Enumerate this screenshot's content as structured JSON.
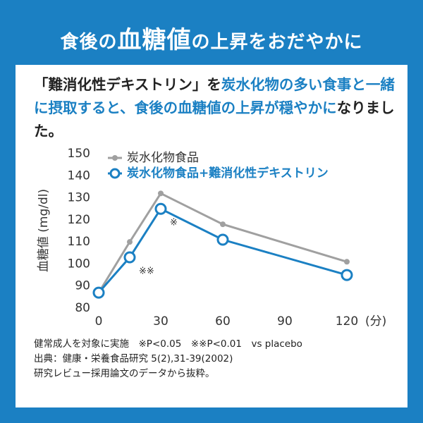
{
  "title": [
    "食後の",
    "血糖値",
    "の上昇をおだやかに"
  ],
  "lead": [
    "「難消化性デキストリン」を",
    "炭水化物の多い食事と一緒に摂取すると、食後の血糖値の上昇が穏やかに",
    "なりました。"
  ],
  "chart_data": {
    "type": "line",
    "ylabel": "血糖値 (mg/dl)",
    "xlabel": "(分)",
    "x": [
      0,
      15,
      30,
      60,
      120
    ],
    "series": [
      {
        "name": "炭水化物食品",
        "color": "#a0a0a0",
        "values": [
          87,
          110,
          132,
          118,
          101
        ]
      },
      {
        "name": "炭水化物食品+難消化性デキストリン",
        "color": "#1b80c3",
        "values": [
          87,
          103,
          125,
          111,
          95
        ]
      }
    ],
    "annotations": [
      "※",
      "※※"
    ],
    "xlim": [
      0,
      120
    ],
    "xticks": [
      0,
      30,
      60,
      90,
      120
    ],
    "ylim": [
      80,
      150
    ],
    "yticks": [
      80,
      90,
      100,
      110,
      120,
      130,
      140,
      150
    ]
  },
  "notes": [
    "健常成人を対象に実施　※P<0.05　※※P<0.01　vs placebo",
    "出典：健康・栄養食品研究 5(2),31-39(2002)",
    "研究レビュー採用論文のデータから抜粋。"
  ]
}
